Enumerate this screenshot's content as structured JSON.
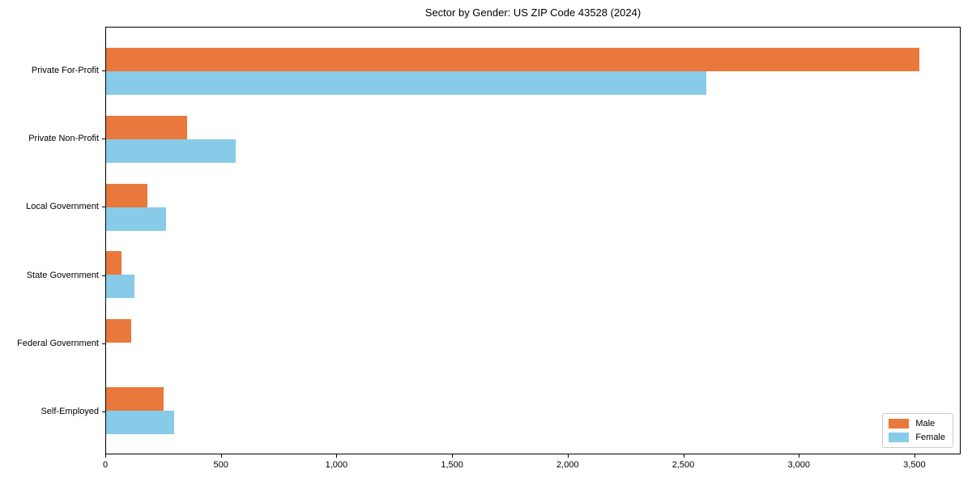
{
  "chart_data": {
    "type": "bar",
    "orientation": "horizontal",
    "title": "Sector by Gender: US ZIP Code 43528 (2024)",
    "categories": [
      "Private For-Profit",
      "Private Non-Profit",
      "Local Government",
      "State Government",
      "Federal Government",
      "Self-Employed"
    ],
    "series": [
      {
        "name": "Male",
        "color": "#e8783c",
        "values": [
          3525,
          350,
          178,
          67,
          108,
          249
        ]
      },
      {
        "name": "Female",
        "color": "#87cbe8",
        "values": [
          2600,
          560,
          260,
          123,
          0,
          296
        ]
      }
    ],
    "xlim": [
      0,
      3700
    ],
    "xticks": {
      "values": [
        0,
        500,
        1000,
        1500,
        2000,
        2500,
        3000,
        3500
      ],
      "labels": [
        "0",
        "500",
        "1,000",
        "1,500",
        "2,000",
        "2,500",
        "3,000",
        "3,500"
      ]
    },
    "xlabel": "",
    "ylabel": "",
    "grid": false,
    "legend_position": "lower right",
    "frame": "full-box",
    "background_color": "#ffffff",
    "axis_color": "#000000"
  }
}
